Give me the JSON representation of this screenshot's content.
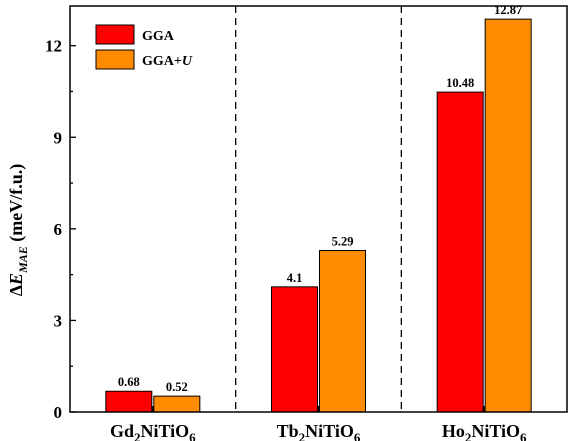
{
  "chart_data": {
    "type": "bar",
    "categories": [
      {
        "base": "Gd",
        "sub1": "2",
        "mid": "NiTiO",
        "sub2": "6"
      },
      {
        "base": "Tb",
        "sub1": "2",
        "mid": "NiTiO",
        "sub2": "6"
      },
      {
        "base": "Ho",
        "sub1": "2",
        "mid": "NiTiO",
        "sub2": "6"
      }
    ],
    "series": [
      {
        "name": "GGA",
        "values": [
          0.68,
          4.1,
          10.48
        ],
        "labels": [
          "0.68",
          "4.1",
          "10.48"
        ],
        "color": "#ff0000"
      },
      {
        "name": "GGA+U",
        "name_base": "GGA+",
        "name_italic": "U",
        "values": [
          0.52,
          5.29,
          12.87
        ],
        "labels": [
          "0.52",
          "5.29",
          "12.87"
        ],
        "color": "#ff8c00"
      }
    ],
    "ylabel": {
      "prefix": "Δ",
      "italic": "E",
      "sub": "MAE",
      "suffix": " (meV/f.u.)"
    },
    "xlabel": "",
    "title": "",
    "ylim": [
      0,
      13.3
    ],
    "yticks": [
      0,
      3,
      6,
      9,
      12
    ],
    "ytick_labels": [
      "0",
      "3",
      "6",
      "9",
      "12"
    ],
    "legend_position": "top-left",
    "group_separators": "dashed",
    "grid": false
  }
}
